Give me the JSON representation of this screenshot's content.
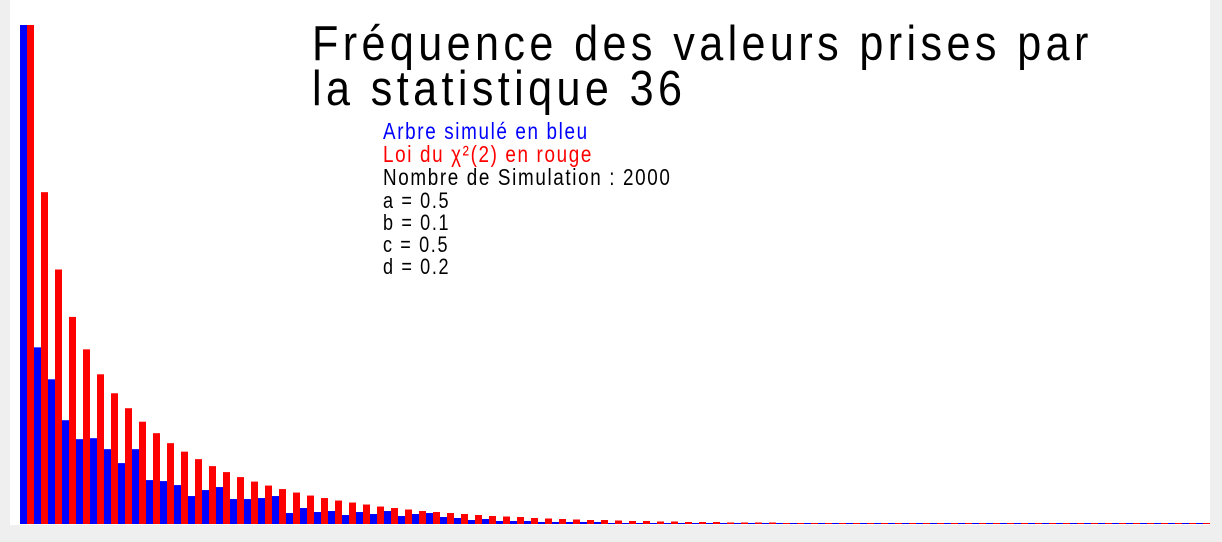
{
  "chart_data": {
    "type": "bar",
    "title": "Fréquence des valeurs prises par la statistique 36",
    "title_lines": [
      "Fréquence des valeurs prises par",
      "la statistique 36"
    ],
    "series": [
      {
        "color": "#0000ff",
        "values": [
          1.0,
          0.354,
          0.29,
          0.208,
          0.17,
          0.172,
          0.15,
          0.122,
          0.15,
          0.088,
          0.086,
          0.078,
          0.056,
          0.068,
          0.074,
          0.05,
          0.05,
          0.052,
          0.056,
          0.022,
          0.032,
          0.024,
          0.026,
          0.018,
          0.024,
          0.02,
          0.026,
          0.016,
          0.02,
          0.022,
          0.014,
          0.012,
          0.008,
          0.01,
          0.006,
          0.006,
          0.006,
          0.004,
          0.004,
          0.004,
          0.004,
          0.004,
          0.002,
          0.002,
          0.002,
          0.002,
          0.002,
          0.002,
          0.002,
          0.002,
          0.002,
          0.002,
          0.002,
          0.002,
          0.002,
          0.002,
          0.002,
          0.002,
          0.002,
          0.002,
          0.002,
          0.002,
          0.002,
          0.002,
          0.002,
          0.002,
          0.002,
          0.002,
          0.002,
          0.002,
          0.002,
          0.002,
          0.002,
          0.002,
          0.002,
          0.002,
          0.002,
          0.002,
          0.002,
          0.002,
          0.002,
          0.002,
          0.002,
          0.002,
          0.002,
          0.002,
          0.002,
          0.002,
          0.002,
          0.002,
          0.002,
          0.002,
          0.002,
          0.002,
          0.002,
          0.002,
          0.002,
          0.002,
          0.002,
          0.002,
          0.002,
          0.002,
          0.002,
          0.002,
          0.002,
          0.002,
          0.002,
          0.002,
          0.002,
          0.002,
          0.002,
          0.002,
          0.002,
          0.002,
          0.002,
          0.002,
          0.002,
          0.002,
          0.002,
          0.002,
          0.002
        ]
      },
      {
        "color": "#ff0000",
        "values": [
          1.0,
          0.665,
          0.51,
          0.415,
          0.35,
          0.3,
          0.262,
          0.232,
          0.205,
          0.182,
          0.162,
          0.145,
          0.13,
          0.116,
          0.104,
          0.094,
          0.085,
          0.077,
          0.07,
          0.063,
          0.057,
          0.052,
          0.047,
          0.043,
          0.039,
          0.035,
          0.032,
          0.029,
          0.026,
          0.024,
          0.022,
          0.02,
          0.018,
          0.016,
          0.015,
          0.014,
          0.012,
          0.011,
          0.01,
          0.009,
          0.008,
          0.008,
          0.007,
          0.006,
          0.006,
          0.005,
          0.005,
          0.004,
          0.004,
          0.004,
          0.003,
          0.003,
          0.003,
          0.003,
          0.002,
          0.002,
          0.002,
          0.002,
          0.002,
          0.002,
          0.002,
          0.002,
          0.002,
          0.002,
          0.002,
          0.002,
          0.002,
          0.002,
          0.002,
          0.002,
          0.002,
          0.002,
          0.002,
          0.002,
          0.002,
          0.002,
          0.002,
          0.002,
          0.002,
          0.002,
          0.002,
          0.002,
          0.002,
          0.002,
          0.002,
          0.002,
          0.002,
          0.002,
          0.002,
          0.002,
          0.002,
          0.002,
          0.002,
          0.002,
          0.002,
          0.002,
          0.002,
          0.002,
          0.002,
          0.002,
          0.002,
          0.002,
          0.002,
          0.002,
          0.002,
          0.002,
          0.002,
          0.002,
          0.002,
          0.002,
          0.002,
          0.002,
          0.002,
          0.002,
          0.002,
          0.002,
          0.002,
          0.002,
          0.002,
          0.002,
          0.002
        ]
      }
    ],
    "ylim": [
      0,
      1
    ],
    "xlabel": "",
    "ylabel": "",
    "grid": false
  },
  "legend": {
    "line1": "Arbre simulé en bleu",
    "line2": "Loi du χ²(2) en rouge",
    "line3": "Nombre de Simulation : 2000",
    "color1": "#0000ff",
    "color2": "#ff0000",
    "color3": "#000000"
  },
  "params": {
    "a": "a = 0.5",
    "b": "b = 0.1",
    "c": "c = 0.5",
    "d": "d = 0.2"
  }
}
